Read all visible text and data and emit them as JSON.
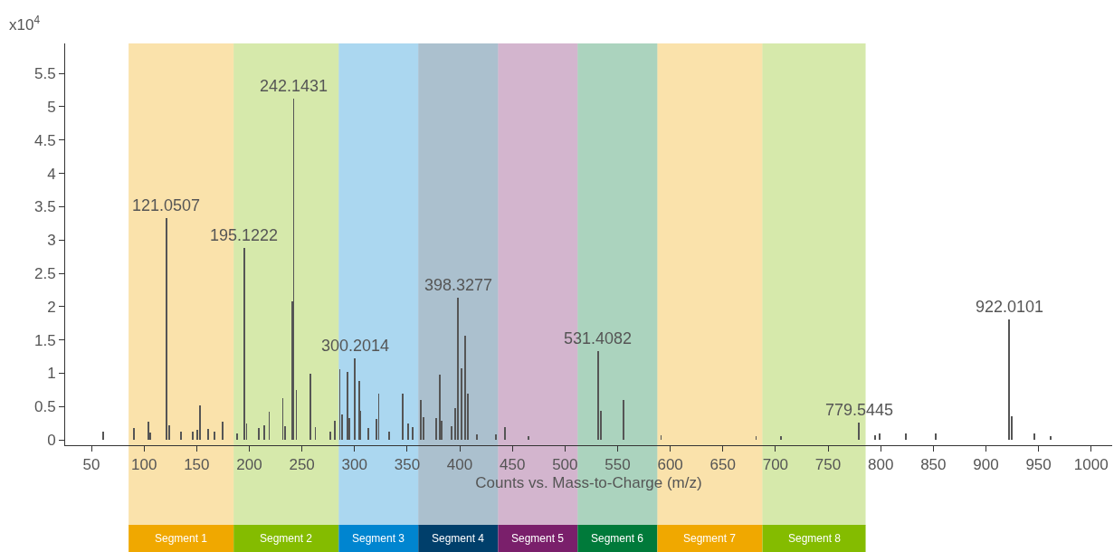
{
  "chart_data": {
    "type": "bar",
    "ylabel": "x10$^{4}$",
    "xlabel": "Counts vs. Mass-to-Charge (m/z)",
    "color": "#555555",
    "x": [
      61,
      90.7,
      104.2,
      105.6,
      121.0507,
      123.7,
      134.9,
      146.6,
      150.7,
      153.3,
      161,
      167,
      175,
      188.3,
      195.1222,
      197.4,
      208.9,
      214,
      218.9,
      231.8,
      234.2,
      240.8,
      242.1431,
      244.7,
      258.2,
      262.8,
      277.2,
      281.2,
      286,
      288.4,
      293.3,
      295,
      300.2014,
      304.7,
      305.8,
      313.3,
      321.1,
      323,
      332.8,
      346,
      351.2,
      355.2,
      363,
      365.5,
      377.3,
      381.3,
      383,
      392.5,
      395.9,
      398.3277,
      401.7,
      405.4,
      407.4,
      416.4,
      434.1,
      442.7,
      465,
      531.4082,
      534.5,
      555.4,
      591.3,
      681.6,
      705,
      779.5445,
      794.6,
      799.2,
      824.2,
      852,
      922.0101,
      924.9,
      946.1,
      961.9
    ],
    "values": [
      0.13,
      0.18,
      0.27,
      0.11,
      3.33,
      0.22,
      0.12,
      0.12,
      0.15,
      0.52,
      0.16,
      0.12,
      0.27,
      0.1,
      2.88,
      0.25,
      0.18,
      0.22,
      0.42,
      0.63,
      0.21,
      2.08,
      5.12,
      0.75,
      0.99,
      0.19,
      0.13,
      0.29,
      1.06,
      0.38,
      1.02,
      0.33,
      1.22,
      0.88,
      0.44,
      0.18,
      0.31,
      0.69,
      0.13,
      0.69,
      0.24,
      0.19,
      0.6,
      0.34,
      0.33,
      0.98,
      0.29,
      0.21,
      0.48,
      2.13,
      1.07,
      1.56,
      0.7,
      0.08,
      0.08,
      0.19,
      0.05,
      1.33,
      0.44,
      0.6,
      0.07,
      0.06,
      0.05,
      0.26,
      0.07,
      0.1,
      0.09,
      0.09,
      1.81,
      0.35,
      0.09,
      0.06
    ],
    "xlim": [
      25,
      1020
    ],
    "ylim": [
      -0.08,
      5.95
    ],
    "xticks": [
      50,
      100,
      150,
      200,
      250,
      300,
      350,
      400,
      450,
      500,
      550,
      600,
      650,
      700,
      750,
      800,
      850,
      900,
      950,
      1000
    ],
    "yticks": [
      0,
      0.5,
      1,
      1.5,
      2,
      2.5,
      3,
      3.5,
      4,
      4.5,
      5,
      5.5
    ],
    "annotations": [
      {
        "text": "121.0507",
        "x": 121.0507,
        "y": 3.33
      },
      {
        "text": "195.1222",
        "x": 195.1222,
        "y": 2.88
      },
      {
        "text": "242.1431",
        "x": 242.1431,
        "y": 5.12
      },
      {
        "text": "300.2014",
        "x": 300.2014,
        "y": 1.22
      },
      {
        "text": "398.3277",
        "x": 398.3277,
        "y": 2.13
      },
      {
        "text": "531.4082",
        "x": 531.4082,
        "y": 1.33
      },
      {
        "text": "779.5445",
        "x": 779.5445,
        "y": 0.26
      },
      {
        "text": "922.0101",
        "x": 922.0101,
        "y": 1.81
      }
    ],
    "bands": [
      {
        "axis": "x",
        "from": 85.3,
        "to": 185.1,
        "label": "Segment 1",
        "color": "#f0a800"
      },
      {
        "axis": "x",
        "from": 185.1,
        "to": 285,
        "label": "Segment 2",
        "color": "#84bc00"
      },
      {
        "axis": "x",
        "from": 285,
        "to": 360.6,
        "label": "Segment 3",
        "color": "#0085d0"
      },
      {
        "axis": "x",
        "from": 360.6,
        "to": 436.4,
        "label": "Segment 4",
        "color": "#003f6b"
      },
      {
        "axis": "x",
        "from": 436.4,
        "to": 512,
        "label": "Segment 5",
        "color": "#7a1f6b"
      },
      {
        "axis": "x",
        "from": 512,
        "to": 587.8,
        "label": "Segment 6",
        "color": "#007a3a"
      },
      {
        "axis": "x",
        "from": 587.8,
        "to": 687.6,
        "label": "Segment 7",
        "color": "#f0a800"
      },
      {
        "axis": "x",
        "from": 687.6,
        "to": 785.7,
        "label": "Segment 8",
        "color": "#84bc00"
      }
    ]
  }
}
